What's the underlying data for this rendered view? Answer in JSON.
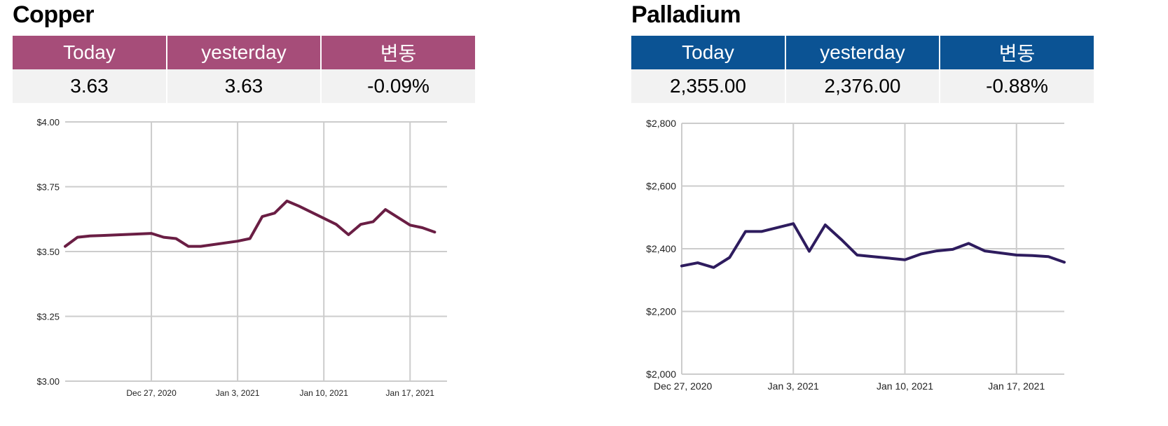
{
  "panels": [
    {
      "title": "Copper",
      "header_color": "#a64d79",
      "line_color": "#6a1e44",
      "table": {
        "headers": [
          "Today",
          "yesterday",
          "변동"
        ],
        "values": [
          "3.63",
          "3.63",
          "-0.09%"
        ]
      }
    },
    {
      "title": "Palladium",
      "header_color": "#0b5394",
      "line_color": "#2e1c5e",
      "table": {
        "headers": [
          "Today",
          "yesterday",
          "변동"
        ],
        "values": [
          "2,355.00",
          "2,376.00",
          "-0.88%"
        ]
      }
    }
  ],
  "chart_data": [
    {
      "type": "line",
      "title": "",
      "xlabel": "",
      "ylabel": "",
      "ylim": [
        3.0,
        4.0
      ],
      "yticks": [
        3.0,
        3.25,
        3.5,
        3.75,
        4.0
      ],
      "ytick_labels": [
        "$3.00",
        "$3.25",
        "$3.50",
        "$3.75",
        "$4.00"
      ],
      "xlim": [
        "2020-12-20",
        "2021-01-20"
      ],
      "xticks": [
        "2020-12-27",
        "2021-01-03",
        "2021-01-10",
        "2021-01-17"
      ],
      "xtick_labels": [
        "Dec 27, 2020",
        "Jan 3, 2021",
        "Jan 10, 2021",
        "Jan 17, 2021"
      ],
      "grid": true,
      "series": [
        {
          "x": [
            "2020-12-20",
            "2020-12-21",
            "2020-12-22",
            "2020-12-23",
            "2020-12-27",
            "2020-12-28",
            "2020-12-29",
            "2020-12-30",
            "2020-12-31",
            "2021-01-03",
            "2021-01-04",
            "2021-01-05",
            "2021-01-06",
            "2021-01-07",
            "2021-01-08",
            "2021-01-11",
            "2021-01-12",
            "2021-01-13",
            "2021-01-14",
            "2021-01-15",
            "2021-01-17",
            "2021-01-18",
            "2021-01-19"
          ],
          "y": [
            3.52,
            3.555,
            3.56,
            3.562,
            3.57,
            3.555,
            3.55,
            3.52,
            3.52,
            3.54,
            3.55,
            3.635,
            3.648,
            3.695,
            3.675,
            3.605,
            3.565,
            3.605,
            3.615,
            3.662,
            3.602,
            3.592,
            3.575
          ]
        }
      ]
    },
    {
      "type": "line",
      "title": "",
      "xlabel": "",
      "ylabel": "",
      "ylim": [
        2000,
        2800
      ],
      "yticks": [
        2000,
        2200,
        2400,
        2600,
        2800
      ],
      "ytick_labels": [
        "$2,000",
        "$2,200",
        "$2,400",
        "$2,600",
        "$2,800"
      ],
      "xlim": [
        "2020-12-27",
        "2021-01-20"
      ],
      "xticks": [
        "2020-12-27",
        "2021-01-03",
        "2021-01-10",
        "2021-01-17"
      ],
      "xtick_labels": [
        "Dec 27, 2020",
        "Jan 3, 2021",
        "Jan 10, 2021",
        "Jan 17, 2021"
      ],
      "grid": true,
      "series": [
        {
          "x": [
            "2020-12-27",
            "2020-12-28",
            "2020-12-29",
            "2020-12-30",
            "2020-12-31",
            "2021-01-01",
            "2021-01-03",
            "2021-01-04",
            "2021-01-05",
            "2021-01-06",
            "2021-01-07",
            "2021-01-08",
            "2021-01-10",
            "2021-01-11",
            "2021-01-12",
            "2021-01-13",
            "2021-01-14",
            "2021-01-15",
            "2021-01-17",
            "2021-01-18",
            "2021-01-19",
            "2021-01-20"
          ],
          "y": [
            2345,
            2355,
            2340,
            2372,
            2455,
            2455,
            2480,
            2392,
            2476,
            2430,
            2380,
            2375,
            2365,
            2383,
            2393,
            2398,
            2417,
            2393,
            2380,
            2378,
            2375,
            2357
          ]
        }
      ]
    }
  ]
}
